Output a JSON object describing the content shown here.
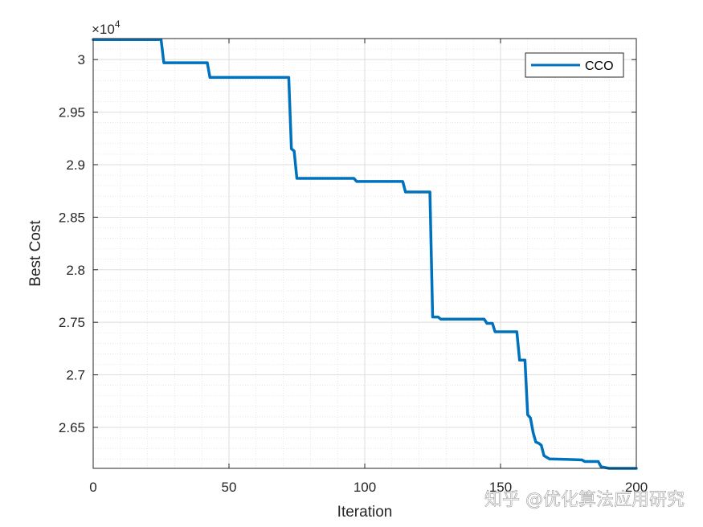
{
  "chart_data": {
    "type": "line",
    "xlabel": "Iteration",
    "ylabel": "Best Cost",
    "xlim": [
      0,
      200
    ],
    "ylim": [
      26110,
      30200
    ],
    "xticks": [
      0,
      50,
      100,
      150,
      200
    ],
    "xtick_labels": [
      "0",
      "50",
      "100",
      "150",
      "200"
    ],
    "yticks": [
      26500,
      27000,
      27500,
      28000,
      28500,
      29000,
      29500,
      30000
    ],
    "ytick_labels": [
      "2.65",
      "2.7",
      "2.75",
      "2.8",
      "2.85",
      "2.9",
      "2.95",
      "3"
    ],
    "y_exponent_prefix": "×10",
    "y_exponent_power": "4",
    "grid": true,
    "minor_grid": true,
    "legend_position": "top-right",
    "series": [
      {
        "name": "CCO",
        "color": "#0072BD",
        "x": [
          0,
          25,
          26,
          42,
          43,
          72,
          73,
          74,
          75,
          96,
          97,
          114,
          115,
          124,
          125,
          127,
          128,
          144,
          145,
          147,
          148,
          156,
          157,
          159,
          160,
          161,
          162,
          163,
          164,
          165,
          166,
          168,
          175,
          180,
          181,
          186,
          187,
          190,
          200
        ],
        "y": [
          30190,
          30190,
          29970,
          29970,
          29830,
          29830,
          29150,
          29130,
          28870,
          28870,
          28840,
          28840,
          28740,
          28740,
          27550,
          27550,
          27530,
          27530,
          27490,
          27490,
          27410,
          27410,
          27140,
          27140,
          26620,
          26590,
          26450,
          26360,
          26350,
          26330,
          26230,
          26200,
          26195,
          26190,
          26175,
          26175,
          26125,
          26110,
          26110
        ]
      }
    ]
  },
  "watermark": {
    "text": "知乎 @优化算法应用研究"
  }
}
